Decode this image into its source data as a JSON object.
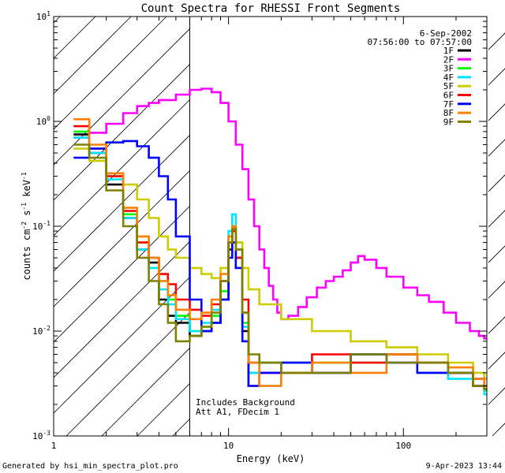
{
  "chart_data": {
    "type": "line",
    "title": "Count Spectra for RHESSI Front Segments",
    "xlabel": "Energy (keV)",
    "ylabel_parts": [
      "counts cm",
      "-2",
      " s",
      "-1",
      " keV",
      "-1"
    ],
    "x_scale": "log",
    "y_scale": "log",
    "xlim": [
      1,
      300
    ],
    "ylim": [
      0.001,
      10
    ],
    "x_ticks": [
      {
        "value": 1,
        "label": "1"
      },
      {
        "value": 10,
        "label": "10"
      },
      {
        "value": 100,
        "label": "100"
      }
    ],
    "y_ticks": [
      {
        "value": 0.001,
        "base": "10",
        "exp": "-3"
      },
      {
        "value": 0.01,
        "base": "10",
        "exp": "-2"
      },
      {
        "value": 0.1,
        "base": "10",
        "exp": "-1"
      },
      {
        "value": 1,
        "base": "10",
        "exp": "0"
      },
      {
        "value": 10,
        "base": "10",
        "exp": "1"
      }
    ],
    "hatched_region_xmax": 6,
    "legend_date": "6-Sep-2002",
    "legend_time": "07:56:00 to 07:57:00",
    "annotations": [
      "Includes Background",
      "Att A1, FDecim 1"
    ],
    "series": [
      {
        "name": "1F",
        "color": "#000000",
        "points": [
          [
            1.3,
            0.75
          ],
          [
            1.6,
            0.5
          ],
          [
            2.0,
            0.25
          ],
          [
            2.5,
            0.12
          ],
          [
            3.0,
            0.06
          ],
          [
            3.5,
            0.045
          ],
          [
            4.0,
            0.02
          ],
          [
            4.5,
            0.014
          ],
          [
            5.0,
            0.012
          ],
          [
            6.0,
            0.009
          ],
          [
            7.0,
            0.01
          ],
          [
            8.0,
            0.012
          ],
          [
            9.0,
            0.02
          ],
          [
            10.0,
            0.06
          ],
          [
            10.5,
            0.09
          ],
          [
            11.0,
            0.05
          ],
          [
            12.0,
            0.01
          ],
          [
            13.0,
            0.005
          ],
          [
            15.0,
            0.005
          ],
          [
            20.0,
            0.005
          ],
          [
            30.0,
            0.004
          ],
          [
            50.0,
            0.006
          ],
          [
            80.0,
            0.006
          ],
          [
            120.0,
            0.005
          ],
          [
            180.0,
            0.004
          ],
          [
            250.0,
            0.003
          ],
          [
            290.0,
            0.0028
          ]
        ]
      },
      {
        "name": "2F",
        "color": "#ff00ff",
        "points": [
          [
            1.3,
            0.7
          ],
          [
            1.6,
            0.78
          ],
          [
            2.0,
            0.95
          ],
          [
            2.5,
            1.2
          ],
          [
            3.0,
            1.4
          ],
          [
            3.5,
            1.5
          ],
          [
            4.0,
            1.6
          ],
          [
            5.0,
            1.8
          ],
          [
            6.0,
            2.0
          ],
          [
            7.0,
            2.05
          ],
          [
            8.0,
            1.9
          ],
          [
            9.0,
            1.5
          ],
          [
            10.0,
            1.0
          ],
          [
            11.0,
            0.6
          ],
          [
            12.0,
            0.35
          ],
          [
            13.0,
            0.18
          ],
          [
            14.0,
            0.1
          ],
          [
            15.0,
            0.06
          ],
          [
            16.0,
            0.04
          ],
          [
            17.0,
            0.027
          ],
          [
            18.0,
            0.02
          ],
          [
            19.0,
            0.015
          ],
          [
            20.0,
            0.013
          ],
          [
            22.0,
            0.014
          ],
          [
            25.0,
            0.017
          ],
          [
            28.0,
            0.021
          ],
          [
            32.0,
            0.026
          ],
          [
            36.0,
            0.03
          ],
          [
            40.0,
            0.033
          ],
          [
            45.0,
            0.038
          ],
          [
            50.0,
            0.045
          ],
          [
            55.0,
            0.052
          ],
          [
            60.0,
            0.048
          ],
          [
            70.0,
            0.04
          ],
          [
            80.0,
            0.033
          ],
          [
            100.0,
            0.026
          ],
          [
            120.0,
            0.022
          ],
          [
            140.0,
            0.019
          ],
          [
            170.0,
            0.015
          ],
          [
            200.0,
            0.012
          ],
          [
            240.0,
            0.01
          ],
          [
            270.0,
            0.009
          ],
          [
            290.0,
            0.0085
          ]
        ]
      },
      {
        "name": "3F",
        "color": "#00ff00",
        "points": [
          [
            1.3,
            0.8
          ],
          [
            1.6,
            0.55
          ],
          [
            2.0,
            0.3
          ],
          [
            2.5,
            0.13
          ],
          [
            3.0,
            0.07
          ],
          [
            3.5,
            0.05
          ],
          [
            4.0,
            0.03
          ],
          [
            4.5,
            0.02
          ],
          [
            5.0,
            0.014
          ],
          [
            6.0,
            0.01
          ],
          [
            7.0,
            0.011
          ],
          [
            8.0,
            0.014
          ],
          [
            9.0,
            0.024
          ],
          [
            10.0,
            0.07
          ],
          [
            10.5,
            0.1
          ],
          [
            11.0,
            0.06
          ],
          [
            12.0,
            0.012
          ],
          [
            13.0,
            0.004
          ],
          [
            15.0,
            0.005
          ],
          [
            20.0,
            0.004
          ],
          [
            30.0,
            0.005
          ],
          [
            50.0,
            0.005
          ],
          [
            80.0,
            0.006
          ],
          [
            120.0,
            0.005
          ],
          [
            180.0,
            0.004
          ],
          [
            250.0,
            0.003
          ],
          [
            290.0,
            0.0027
          ]
        ]
      },
      {
        "name": "4F",
        "color": "#00e5ff",
        "points": [
          [
            1.3,
            0.7
          ],
          [
            1.6,
            0.5
          ],
          [
            2.0,
            0.28
          ],
          [
            2.5,
            0.12
          ],
          [
            3.0,
            0.06
          ],
          [
            3.5,
            0.04
          ],
          [
            4.0,
            0.025
          ],
          [
            4.5,
            0.018
          ],
          [
            5.0,
            0.013
          ],
          [
            6.0,
            0.01
          ],
          [
            7.0,
            0.012
          ],
          [
            8.0,
            0.016
          ],
          [
            9.0,
            0.03
          ],
          [
            10.0,
            0.09
          ],
          [
            10.5,
            0.13
          ],
          [
            11.0,
            0.07
          ],
          [
            12.0,
            0.011
          ],
          [
            13.0,
            0.004
          ],
          [
            15.0,
            0.003
          ],
          [
            20.0,
            0.005
          ],
          [
            30.0,
            0.004
          ],
          [
            50.0,
            0.006
          ],
          [
            80.0,
            0.005
          ],
          [
            120.0,
            0.004
          ],
          [
            180.0,
            0.0035
          ],
          [
            250.0,
            0.003
          ],
          [
            290.0,
            0.0025
          ]
        ]
      },
      {
        "name": "5F",
        "color": "#cccc00",
        "points": [
          [
            1.3,
            0.55
          ],
          [
            1.6,
            0.42
          ],
          [
            2.0,
            0.32
          ],
          [
            2.5,
            0.25
          ],
          [
            3.0,
            0.18
          ],
          [
            3.5,
            0.12
          ],
          [
            4.0,
            0.08
          ],
          [
            4.5,
            0.06
          ],
          [
            5.0,
            0.05
          ],
          [
            6.0,
            0.04
          ],
          [
            7.0,
            0.035
          ],
          [
            8.0,
            0.032
          ],
          [
            9.0,
            0.04
          ],
          [
            10.0,
            0.07
          ],
          [
            10.5,
            0.1
          ],
          [
            11.0,
            0.07
          ],
          [
            12.0,
            0.04
          ],
          [
            13.0,
            0.025
          ],
          [
            15.0,
            0.018
          ],
          [
            20.0,
            0.013
          ],
          [
            30.0,
            0.01
          ],
          [
            50.0,
            0.008
          ],
          [
            80.0,
            0.007
          ],
          [
            120.0,
            0.006
          ],
          [
            180.0,
            0.005
          ],
          [
            250.0,
            0.004
          ],
          [
            290.0,
            0.0035
          ]
        ]
      },
      {
        "name": "6F",
        "color": "#ff0000",
        "points": [
          [
            1.3,
            0.9
          ],
          [
            1.6,
            0.55
          ],
          [
            2.0,
            0.3
          ],
          [
            2.5,
            0.14
          ],
          [
            3.0,
            0.07
          ],
          [
            3.5,
            0.05
          ],
          [
            4.0,
            0.035
          ],
          [
            4.5,
            0.028
          ],
          [
            5.0,
            0.02
          ],
          [
            6.0,
            0.016
          ],
          [
            7.0,
            0.014
          ],
          [
            8.0,
            0.018
          ],
          [
            9.0,
            0.03
          ],
          [
            10.0,
            0.07
          ],
          [
            10.5,
            0.09
          ],
          [
            11.0,
            0.05
          ],
          [
            12.0,
            0.02
          ],
          [
            13.0,
            0.003
          ],
          [
            15.0,
            0.004
          ],
          [
            20.0,
            0.004
          ],
          [
            30.0,
            0.006
          ],
          [
            50.0,
            0.005
          ],
          [
            80.0,
            0.006
          ],
          [
            120.0,
            0.005
          ],
          [
            180.0,
            0.004
          ],
          [
            250.0,
            0.003
          ],
          [
            290.0,
            0.003
          ]
        ]
      },
      {
        "name": "7F",
        "color": "#0000ff",
        "points": [
          [
            1.3,
            0.45
          ],
          [
            1.6,
            0.55
          ],
          [
            2.0,
            0.63
          ],
          [
            2.5,
            0.65
          ],
          [
            3.0,
            0.58
          ],
          [
            3.5,
            0.45
          ],
          [
            4.0,
            0.3
          ],
          [
            4.5,
            0.18
          ],
          [
            5.0,
            0.08
          ],
          [
            6.0,
            0.02
          ],
          [
            7.0,
            0.01
          ],
          [
            8.0,
            0.012
          ],
          [
            9.0,
            0.02
          ],
          [
            10.0,
            0.05
          ],
          [
            10.5,
            0.07
          ],
          [
            11.0,
            0.04
          ],
          [
            12.0,
            0.008
          ],
          [
            13.0,
            0.003
          ],
          [
            15.0,
            0.004
          ],
          [
            20.0,
            0.005
          ],
          [
            30.0,
            0.004
          ],
          [
            50.0,
            0.006
          ],
          [
            80.0,
            0.005
          ],
          [
            120.0,
            0.004
          ],
          [
            180.0,
            0.004
          ],
          [
            250.0,
            0.0035
          ],
          [
            290.0,
            0.003
          ]
        ]
      },
      {
        "name": "8F",
        "color": "#ff8000",
        "points": [
          [
            1.3,
            1.05
          ],
          [
            1.6,
            0.6
          ],
          [
            2.0,
            0.32
          ],
          [
            2.5,
            0.15
          ],
          [
            3.0,
            0.08
          ],
          [
            3.5,
            0.05
          ],
          [
            4.0,
            0.03
          ],
          [
            4.5,
            0.022
          ],
          [
            5.0,
            0.016
          ],
          [
            6.0,
            0.013
          ],
          [
            7.0,
            0.015
          ],
          [
            8.0,
            0.02
          ],
          [
            9.0,
            0.035
          ],
          [
            10.0,
            0.08
          ],
          [
            10.5,
            0.1
          ],
          [
            11.0,
            0.06
          ],
          [
            12.0,
            0.015
          ],
          [
            13.0,
            0.005
          ],
          [
            15.0,
            0.003
          ],
          [
            20.0,
            0.004
          ],
          [
            30.0,
            0.005
          ],
          [
            50.0,
            0.004
          ],
          [
            80.0,
            0.006
          ],
          [
            120.0,
            0.005
          ],
          [
            180.0,
            0.0045
          ],
          [
            250.0,
            0.0035
          ],
          [
            290.0,
            0.003
          ]
        ]
      },
      {
        "name": "9F",
        "color": "#808000",
        "points": [
          [
            1.3,
            0.6
          ],
          [
            1.6,
            0.45
          ],
          [
            2.0,
            0.22
          ],
          [
            2.5,
            0.1
          ],
          [
            3.0,
            0.05
          ],
          [
            3.5,
            0.03
          ],
          [
            4.0,
            0.018
          ],
          [
            4.5,
            0.012
          ],
          [
            5.0,
            0.008
          ],
          [
            6.0,
            0.009
          ],
          [
            7.0,
            0.011
          ],
          [
            8.0,
            0.015
          ],
          [
            9.0,
            0.03
          ],
          [
            10.0,
            0.07
          ],
          [
            10.5,
            0.095
          ],
          [
            11.0,
            0.06
          ],
          [
            12.0,
            0.015
          ],
          [
            13.0,
            0.006
          ],
          [
            15.0,
            0.005
          ],
          [
            20.0,
            0.004
          ],
          [
            30.0,
            0.004
          ],
          [
            50.0,
            0.006
          ],
          [
            80.0,
            0.005
          ],
          [
            120.0,
            0.005
          ],
          [
            180.0,
            0.004
          ],
          [
            250.0,
            0.003
          ],
          [
            290.0,
            0.0028
          ]
        ]
      }
    ]
  },
  "footer": {
    "generated_by": "Generated by hsi_min_spectra_plot.pro",
    "timestamp": "9-Apr-2023 13:44"
  }
}
